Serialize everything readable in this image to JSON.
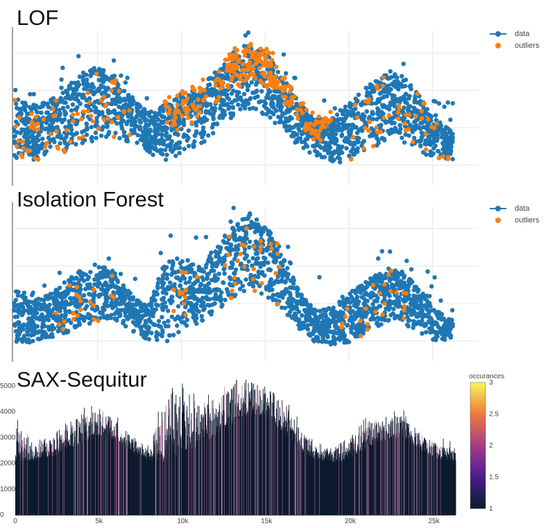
{
  "panels": [
    {
      "title": "LOF",
      "legend": [
        "data",
        "outliers"
      ]
    },
    {
      "title": "Isolation Forest",
      "legend": [
        "data",
        "outliers"
      ]
    },
    {
      "title": "SAX-Sequitur",
      "colorbar": {
        "title": "occurances",
        "ticks": [
          "3",
          "2.5",
          "2",
          "1.5",
          "1"
        ]
      }
    }
  ],
  "colors": {
    "data": "#1f77b4",
    "outliers": "#ff7f0e",
    "bar_low": "#0d1b2e",
    "bar_high": "#c77fb0"
  },
  "chart_data": [
    {
      "type": "scatter",
      "title": "LOF",
      "legend": "top-right",
      "grid": true,
      "xlim": [
        0,
        26500
      ],
      "envelope": {
        "x": [
          0,
          1000,
          2000,
          3000,
          4000,
          5000,
          6000,
          7000,
          8000,
          9000,
          10000,
          11000,
          12000,
          13000,
          14000,
          15000,
          16000,
          17000,
          18000,
          19000,
          20000,
          21000,
          22000,
          23000,
          24000,
          25000,
          26000
        ],
        "low": [
          0.12,
          0.12,
          0.14,
          0.18,
          0.22,
          0.26,
          0.28,
          0.22,
          0.16,
          0.12,
          0.16,
          0.22,
          0.3,
          0.38,
          0.45,
          0.42,
          0.34,
          0.22,
          0.12,
          0.1,
          0.12,
          0.18,
          0.24,
          0.26,
          0.2,
          0.14,
          0.12
        ],
        "high": [
          0.55,
          0.5,
          0.52,
          0.6,
          0.72,
          0.76,
          0.7,
          0.56,
          0.45,
          0.5,
          0.56,
          0.62,
          0.72,
          0.82,
          0.9,
          0.86,
          0.72,
          0.52,
          0.4,
          0.42,
          0.52,
          0.62,
          0.7,
          0.72,
          0.6,
          0.42,
          0.34
        ]
      },
      "outlier_regions": [
        {
          "x_from": 0,
          "x_to": 7000,
          "density": 0.25
        },
        {
          "x_from": 9000,
          "x_to": 11500,
          "density": 0.6
        },
        {
          "x_from": 12000,
          "x_to": 16000,
          "density": 0.9
        },
        {
          "x_from": 16000,
          "x_to": 19000,
          "density": 0.55
        },
        {
          "x_from": 20000,
          "x_to": 26000,
          "density": 0.2
        }
      ]
    },
    {
      "type": "scatter",
      "title": "Isolation Forest",
      "legend": "top-right",
      "grid": true,
      "xlim": [
        0,
        26500
      ],
      "envelope": {
        "x": [
          0,
          1000,
          2000,
          3000,
          4000,
          5000,
          6000,
          7000,
          8000,
          9000,
          10000,
          11000,
          12000,
          13000,
          14000,
          15000,
          16000,
          17000,
          18000,
          19000,
          20000,
          21000,
          22000,
          23000,
          24000,
          25000,
          26000
        ],
        "low": [
          0.08,
          0.08,
          0.1,
          0.14,
          0.18,
          0.22,
          0.22,
          0.16,
          0.1,
          0.08,
          0.14,
          0.2,
          0.28,
          0.36,
          0.42,
          0.4,
          0.3,
          0.18,
          0.08,
          0.06,
          0.08,
          0.14,
          0.2,
          0.22,
          0.16,
          0.1,
          0.08
        ],
        "high": [
          0.45,
          0.36,
          0.4,
          0.48,
          0.58,
          0.62,
          0.56,
          0.42,
          0.32,
          0.62,
          0.66,
          0.6,
          0.72,
          0.86,
          0.96,
          0.88,
          0.7,
          0.44,
          0.3,
          0.32,
          0.42,
          0.5,
          0.56,
          0.58,
          0.48,
          0.32,
          0.24
        ]
      },
      "outlier_regions": [
        {
          "x_from": 2500,
          "x_to": 6000,
          "density": 0.15
        },
        {
          "x_from": 9500,
          "x_to": 11000,
          "density": 0.2
        },
        {
          "x_from": 12500,
          "x_to": 16000,
          "density": 0.2
        },
        {
          "x_from": 19500,
          "x_to": 23500,
          "density": 0.15
        }
      ]
    },
    {
      "type": "bar",
      "title": "SAX-Sequitur",
      "grid": false,
      "x_ticks": [
        "0",
        "5k",
        "10k",
        "15k",
        "20k",
        "25k"
      ],
      "x_tick_values": [
        0,
        5000,
        10000,
        15000,
        20000,
        25000
      ],
      "y_ticks": [
        "0",
        "1000",
        "2000",
        "3000",
        "4000",
        "5000"
      ],
      "y_tick_values": [
        0,
        1000,
        2000,
        3000,
        4000,
        5000
      ],
      "xlim": [
        0,
        26300
      ],
      "ylim": [
        0,
        5400
      ],
      "color_scale": {
        "name": "occurances",
        "min": 1,
        "max": 3
      },
      "envelope": {
        "x": [
          0,
          1000,
          2000,
          3000,
          4000,
          5000,
          6000,
          7000,
          8000,
          9000,
          10000,
          11000,
          12000,
          13000,
          14000,
          15000,
          16000,
          17000,
          18000,
          19000,
          20000,
          21000,
          22000,
          23000,
          24000,
          25000,
          26000
        ],
        "low": [
          2100,
          2100,
          2200,
          2500,
          2800,
          3000,
          2900,
          2400,
          2100,
          2000,
          2400,
          2700,
          3100,
          3500,
          3900,
          3800,
          3200,
          2500,
          2100,
          2000,
          2200,
          2600,
          2900,
          3000,
          2600,
          2200,
          2100
        ],
        "high": [
          3500,
          2900,
          3000,
          3500,
          3900,
          4000,
          3700,
          3000,
          2600,
          4800,
          5000,
          4200,
          4600,
          5000,
          5200,
          5000,
          4400,
          3400,
          2600,
          2600,
          3100,
          3600,
          3800,
          3900,
          3400,
          2800,
          2600
        ]
      }
    }
  ]
}
